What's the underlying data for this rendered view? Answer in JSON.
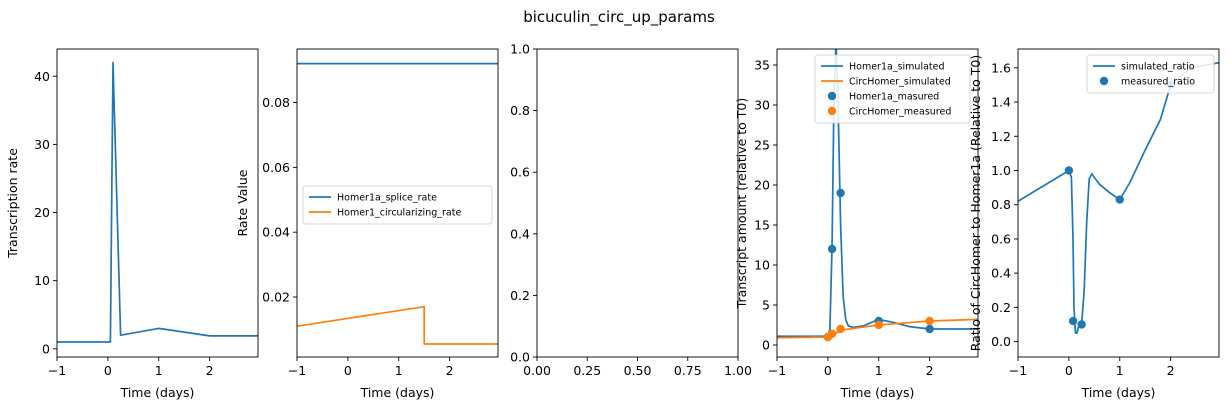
{
  "figure_title": "bicuculin_circ_up_params",
  "colors": {
    "blue": "#1f77b4",
    "orange": "#ff7f0e",
    "axis": "#000000"
  },
  "chart_data": [
    {
      "type": "line",
      "xlabel": "Time (days)",
      "ylabel": "Transcription rate",
      "xlim": [
        -1,
        2.95
      ],
      "ylim": [
        -1.2,
        44
      ],
      "xticks": [
        -1,
        0,
        1,
        2
      ],
      "yticks": [
        0,
        10,
        20,
        30,
        40
      ],
      "grid": false,
      "legend": null,
      "series": [
        {
          "color": "#1f77b4",
          "x": [
            -1,
            0.05,
            0.1,
            0.25,
            1,
            2,
            2.95
          ],
          "y": [
            1,
            1,
            42,
            2,
            3,
            1.9,
            1.9
          ]
        }
      ]
    },
    {
      "type": "line",
      "xlabel": "Time (days)",
      "ylabel": "Rate Value",
      "xlim": [
        -1,
        2.95
      ],
      "ylim": [
        0.0015,
        0.0965
      ],
      "xticks": [
        -1,
        0,
        1,
        2
      ],
      "yticks": [
        0.02,
        0.04,
        0.06,
        0.08
      ],
      "grid": false,
      "legend": "center",
      "series": [
        {
          "name": "Homer1a_splice_rate",
          "color": "#1f77b4",
          "x": [
            -1,
            2.95
          ],
          "y": [
            0.092,
            0.092
          ]
        },
        {
          "name": "Homer1_circularizing_rate",
          "color": "#ff7f0e",
          "x": [
            -1,
            1.5,
            1.5,
            2.95
          ],
          "y": [
            0.011,
            0.017,
            0.0055,
            0.0055
          ]
        }
      ]
    },
    {
      "type": "line",
      "xlabel": "",
      "ylabel": "",
      "xlim": [
        0,
        1
      ],
      "ylim": [
        0,
        1
      ],
      "xticks": [
        0.0,
        0.25,
        0.5,
        0.75,
        1.0
      ],
      "yticks": [
        0.0,
        0.2,
        0.4,
        0.6,
        0.8,
        1.0
      ],
      "grid": false,
      "legend": null,
      "series": []
    },
    {
      "type": "line",
      "xlabel": "Time (days)",
      "ylabel": "Transcript amount (relative to T0)",
      "xlim": [
        -1,
        2.95
      ],
      "ylim": [
        -1.5,
        37
      ],
      "xticks": [
        -1,
        0,
        1,
        2
      ],
      "yticks": [
        0,
        5,
        10,
        15,
        20,
        25,
        30,
        35
      ],
      "grid": false,
      "legend": "upper right",
      "series": [
        {
          "name": "Homer1a_simulated",
          "color": "#1f77b4",
          "x": [
            -1,
            0,
            0.04,
            0.08,
            0.12,
            0.16,
            0.2,
            0.25,
            0.3,
            0.35,
            0.4,
            0.5,
            0.7,
            1,
            1.3,
            1.6,
            2,
            2.95
          ],
          "y": [
            1.1,
            1.1,
            2,
            12,
            31,
            38,
            30,
            15,
            6,
            3.2,
            2.4,
            2.2,
            2.4,
            3.2,
            2.8,
            2.3,
            2.0,
            2.0
          ]
        },
        {
          "name": "CircHomer_simulated",
          "color": "#ff7f0e",
          "x": [
            -1,
            0,
            0.3,
            1,
            2,
            2.95
          ],
          "y": [
            0.9,
            1.0,
            1.9,
            2.5,
            3.0,
            3.2
          ]
        },
        {
          "name": "Homer1a_masured",
          "color": "#1f77b4",
          "marker": true,
          "x": [
            0,
            0.083,
            0.25,
            1,
            2
          ],
          "y": [
            1,
            12,
            19,
            3,
            2
          ]
        },
        {
          "name": "CircHomer_measured",
          "color": "#ff7f0e",
          "marker": true,
          "x": [
            0,
            0.083,
            0.25,
            1,
            2
          ],
          "y": [
            1,
            1.4,
            2,
            2.5,
            3
          ]
        }
      ]
    },
    {
      "type": "line",
      "xlabel": "Time (days)",
      "ylabel": "Ratio of CircHomer to Homer1a (Relative to T0)",
      "xlim": [
        -1,
        2.95
      ],
      "ylim": [
        -0.09,
        1.71
      ],
      "xticks": [
        -1,
        0,
        1,
        2
      ],
      "yticks": [
        0.0,
        0.2,
        0.4,
        0.6,
        0.8,
        1.0,
        1.2,
        1.4,
        1.6
      ],
      "grid": false,
      "legend": "upper right",
      "series": [
        {
          "name": "simulated_ratio",
          "color": "#1f77b4",
          "x": [
            -1,
            0,
            0.05,
            0.08,
            0.1,
            0.13,
            0.16,
            0.2,
            0.25,
            0.3,
            0.35,
            0.4,
            0.45,
            0.6,
            0.8,
            1,
            1.2,
            1.5,
            1.8,
            2,
            2.4,
            2.95
          ],
          "y": [
            0.82,
            1.0,
            0.96,
            0.6,
            0.2,
            0.05,
            0.05,
            0.1,
            0.1,
            0.3,
            0.7,
            0.95,
            0.98,
            0.92,
            0.87,
            0.83,
            0.93,
            1.12,
            1.3,
            1.5,
            1.6,
            1.63
          ]
        },
        {
          "name": "measured_ratio",
          "color": "#1f77b4",
          "marker": true,
          "x": [
            0,
            0.083,
            0.25,
            1,
            2
          ],
          "y": [
            1.0,
            0.12,
            0.1,
            0.83,
            1.5
          ]
        }
      ]
    }
  ]
}
